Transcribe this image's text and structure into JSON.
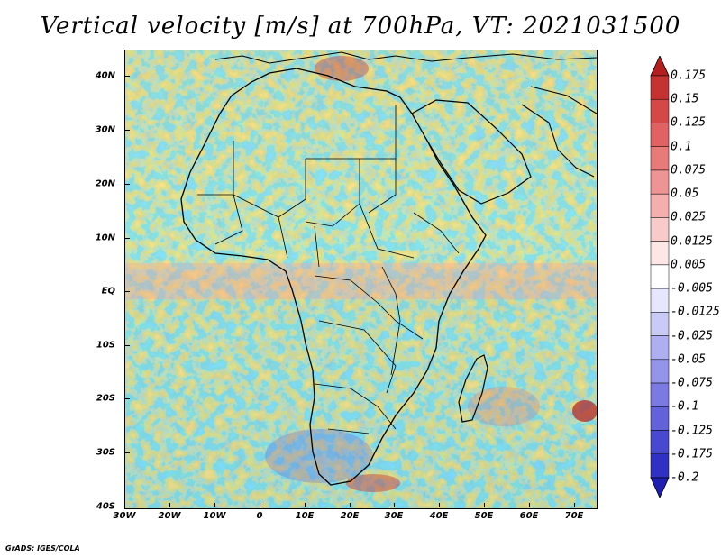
{
  "title": "Vertical velocity [m/s] at 700hPa, VT: 2021031500",
  "footer": "GrADS: IGES/COLA",
  "map": {
    "y_axis_labels": [
      "40N",
      "30N",
      "20N",
      "10N",
      "EQ",
      "10S",
      "20S",
      "30S",
      "40S"
    ],
    "x_axis_labels": [
      "30W",
      "20W",
      "10W",
      "0",
      "10E",
      "20E",
      "30E",
      "40E",
      "50E",
      "60E",
      "70E"
    ]
  },
  "colorbar": {
    "labels": [
      "0.175",
      "0.15",
      "0.125",
      "0.1",
      "0.075",
      "0.05",
      "0.025",
      "0.0125",
      "0.005",
      "-0.005",
      "-0.0125",
      "-0.025",
      "-0.05",
      "-0.075",
      "-0.1",
      "-0.125",
      "-0.175",
      "-0.2"
    ],
    "colors": [
      "#b51e1e",
      "#c53232",
      "#d44848",
      "#e06262",
      "#e87a7a",
      "#ef9494",
      "#f4aeae",
      "#f8caca",
      "#fce6e6",
      "#ffffff",
      "#e6e6fc",
      "#cacaf6",
      "#aeaef0",
      "#9494ea",
      "#7a7ae2",
      "#6262da",
      "#4848d0",
      "#3030c4",
      "#1e1eb0"
    ]
  }
}
